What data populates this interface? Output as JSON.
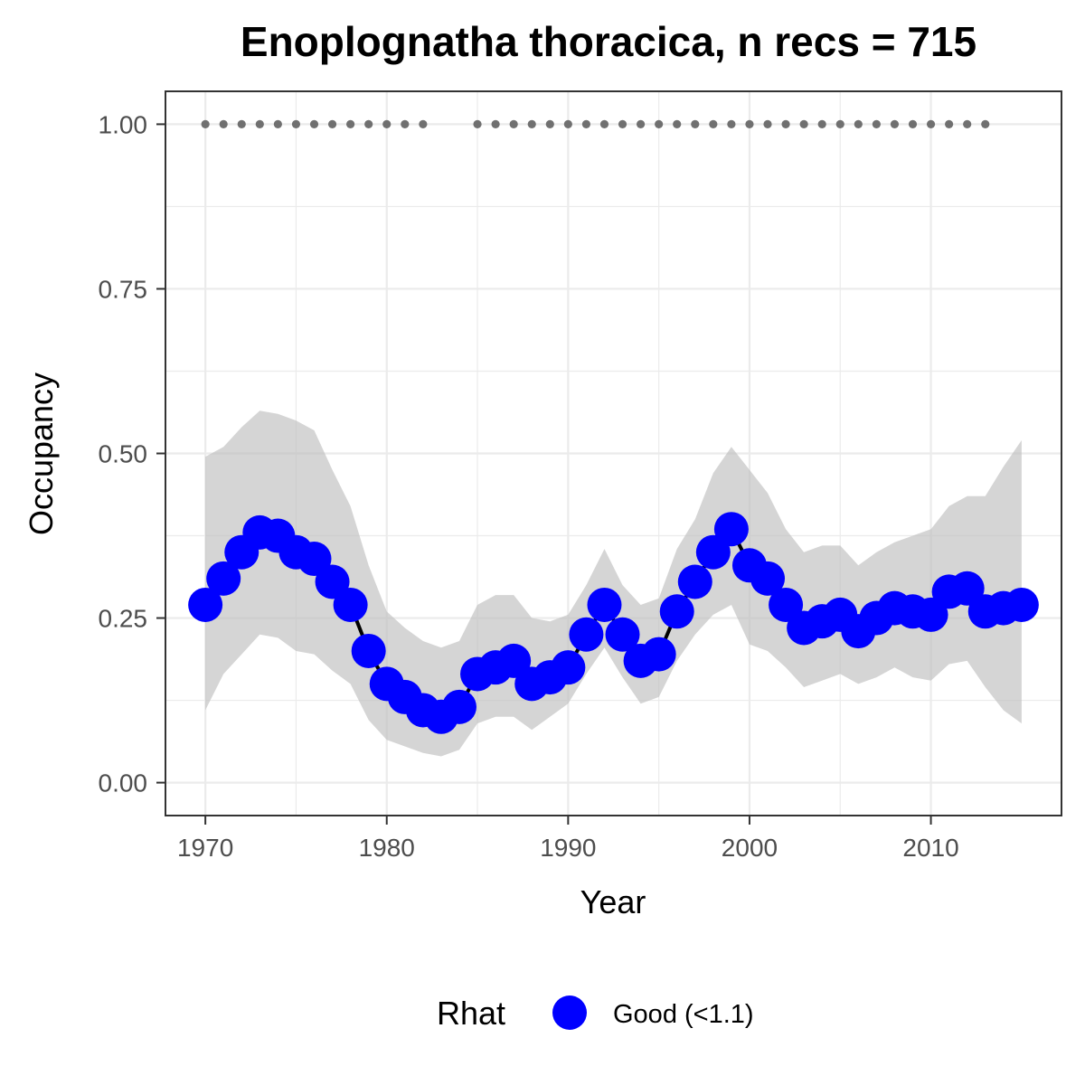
{
  "chart_data": {
    "type": "line",
    "title": "Enoplognatha thoracica, n recs = 715",
    "xlabel": "Year",
    "ylabel": "Occupancy",
    "xlim": [
      1967.8,
      2017.2
    ],
    "ylim": [
      -0.05,
      1.05
    ],
    "x_ticks": [
      1970,
      1980,
      1990,
      2000,
      2010
    ],
    "x_tick_labels": [
      "1970",
      "1980",
      "1990",
      "2000",
      "2010"
    ],
    "y_ticks": [
      0,
      0.25,
      0.5,
      0.75,
      1.0
    ],
    "y_tick_labels": [
      "0.00",
      "0.25",
      "0.50",
      "0.75",
      "1.00"
    ],
    "grid": true,
    "legend": {
      "position": "bottom",
      "title": "Rhat",
      "entries": [
        {
          "label": "Good (<1.1)",
          "color": "#0000ff"
        }
      ]
    },
    "series": [
      {
        "name": "Good (<1.1)",
        "color": "#0000ff",
        "x": [
          1970,
          1971,
          1972,
          1973,
          1974,
          1975,
          1976,
          1977,
          1978,
          1979,
          1980,
          1981,
          1982,
          1983,
          1984,
          1985,
          1986,
          1987,
          1988,
          1989,
          1990,
          1991,
          1992,
          1993,
          1994,
          1995,
          1996,
          1997,
          1998,
          1999,
          2000,
          2001,
          2002,
          2003,
          2004,
          2005,
          2006,
          2007,
          2008,
          2009,
          2010,
          2011,
          2012,
          2013,
          2014,
          2015
        ],
        "y": [
          0.27,
          0.31,
          0.35,
          0.38,
          0.375,
          0.35,
          0.34,
          0.305,
          0.27,
          0.2,
          0.15,
          0.13,
          0.11,
          0.1,
          0.115,
          0.165,
          0.175,
          0.185,
          0.15,
          0.16,
          0.175,
          0.225,
          0.27,
          0.225,
          0.185,
          0.195,
          0.26,
          0.305,
          0.35,
          0.385,
          0.33,
          0.31,
          0.27,
          0.235,
          0.245,
          0.255,
          0.23,
          0.25,
          0.265,
          0.26,
          0.255,
          0.29,
          0.295,
          0.26,
          0.265,
          0.27
        ],
        "lower": [
          0.11,
          0.165,
          0.195,
          0.225,
          0.22,
          0.2,
          0.195,
          0.17,
          0.15,
          0.095,
          0.065,
          0.055,
          0.045,
          0.04,
          0.05,
          0.09,
          0.1,
          0.1,
          0.08,
          0.1,
          0.12,
          0.165,
          0.205,
          0.16,
          0.12,
          0.13,
          0.185,
          0.225,
          0.255,
          0.27,
          0.21,
          0.2,
          0.175,
          0.145,
          0.155,
          0.165,
          0.15,
          0.16,
          0.175,
          0.16,
          0.155,
          0.18,
          0.185,
          0.145,
          0.11,
          0.09
        ],
        "upper": [
          0.495,
          0.51,
          0.54,
          0.565,
          0.56,
          0.55,
          0.535,
          0.475,
          0.42,
          0.33,
          0.26,
          0.235,
          0.215,
          0.205,
          0.215,
          0.27,
          0.285,
          0.285,
          0.25,
          0.245,
          0.255,
          0.3,
          0.355,
          0.3,
          0.27,
          0.28,
          0.355,
          0.4,
          0.47,
          0.51,
          0.475,
          0.44,
          0.385,
          0.35,
          0.36,
          0.36,
          0.33,
          0.35,
          0.365,
          0.375,
          0.385,
          0.42,
          0.435,
          0.435,
          0.48,
          0.52
        ]
      }
    ],
    "record_years": [
      1970,
      1971,
      1972,
      1973,
      1974,
      1975,
      1976,
      1977,
      1978,
      1979,
      1980,
      1981,
      1982,
      1985,
      1986,
      1987,
      1988,
      1989,
      1990,
      1991,
      1992,
      1993,
      1994,
      1995,
      1996,
      1997,
      1998,
      1999,
      2000,
      2001,
      2002,
      2003,
      2004,
      2005,
      2006,
      2007,
      2008,
      2009,
      2010,
      2011,
      2012,
      2013
    ],
    "record_marker_y": 1.0,
    "colors": {
      "ribbon": "#bfbfbf",
      "line": "#000000",
      "record_dots": "#707070",
      "grid": "#ebebeb",
      "panel_border": "#333333"
    }
  }
}
